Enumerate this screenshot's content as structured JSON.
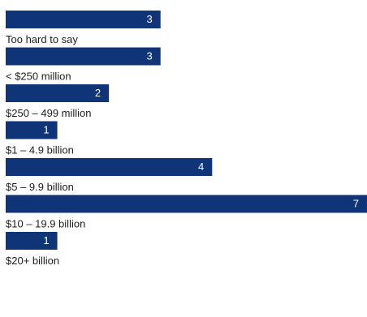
{
  "chart_data": {
    "type": "bar",
    "orientation": "horizontal",
    "categories": [
      "Too hard to say",
      "< $250 million",
      "$250  – 499 million",
      "$1  – 4.9 billion",
      "$5  – 9.9 billion",
      "$10  – 19.9 billion",
      "$20+ billion"
    ],
    "values": [
      3,
      3,
      2,
      1,
      4,
      7,
      1
    ],
    "xlim": [
      0,
      7
    ],
    "grid": false,
    "legend": "none",
    "value_labels": "inside-end",
    "category_labels": "below-bar"
  },
  "colors": {
    "bar": "#0f3478",
    "bar_value_text": "#ffffff",
    "label_text": "#1f1f1f",
    "background": "#ffffff"
  }
}
